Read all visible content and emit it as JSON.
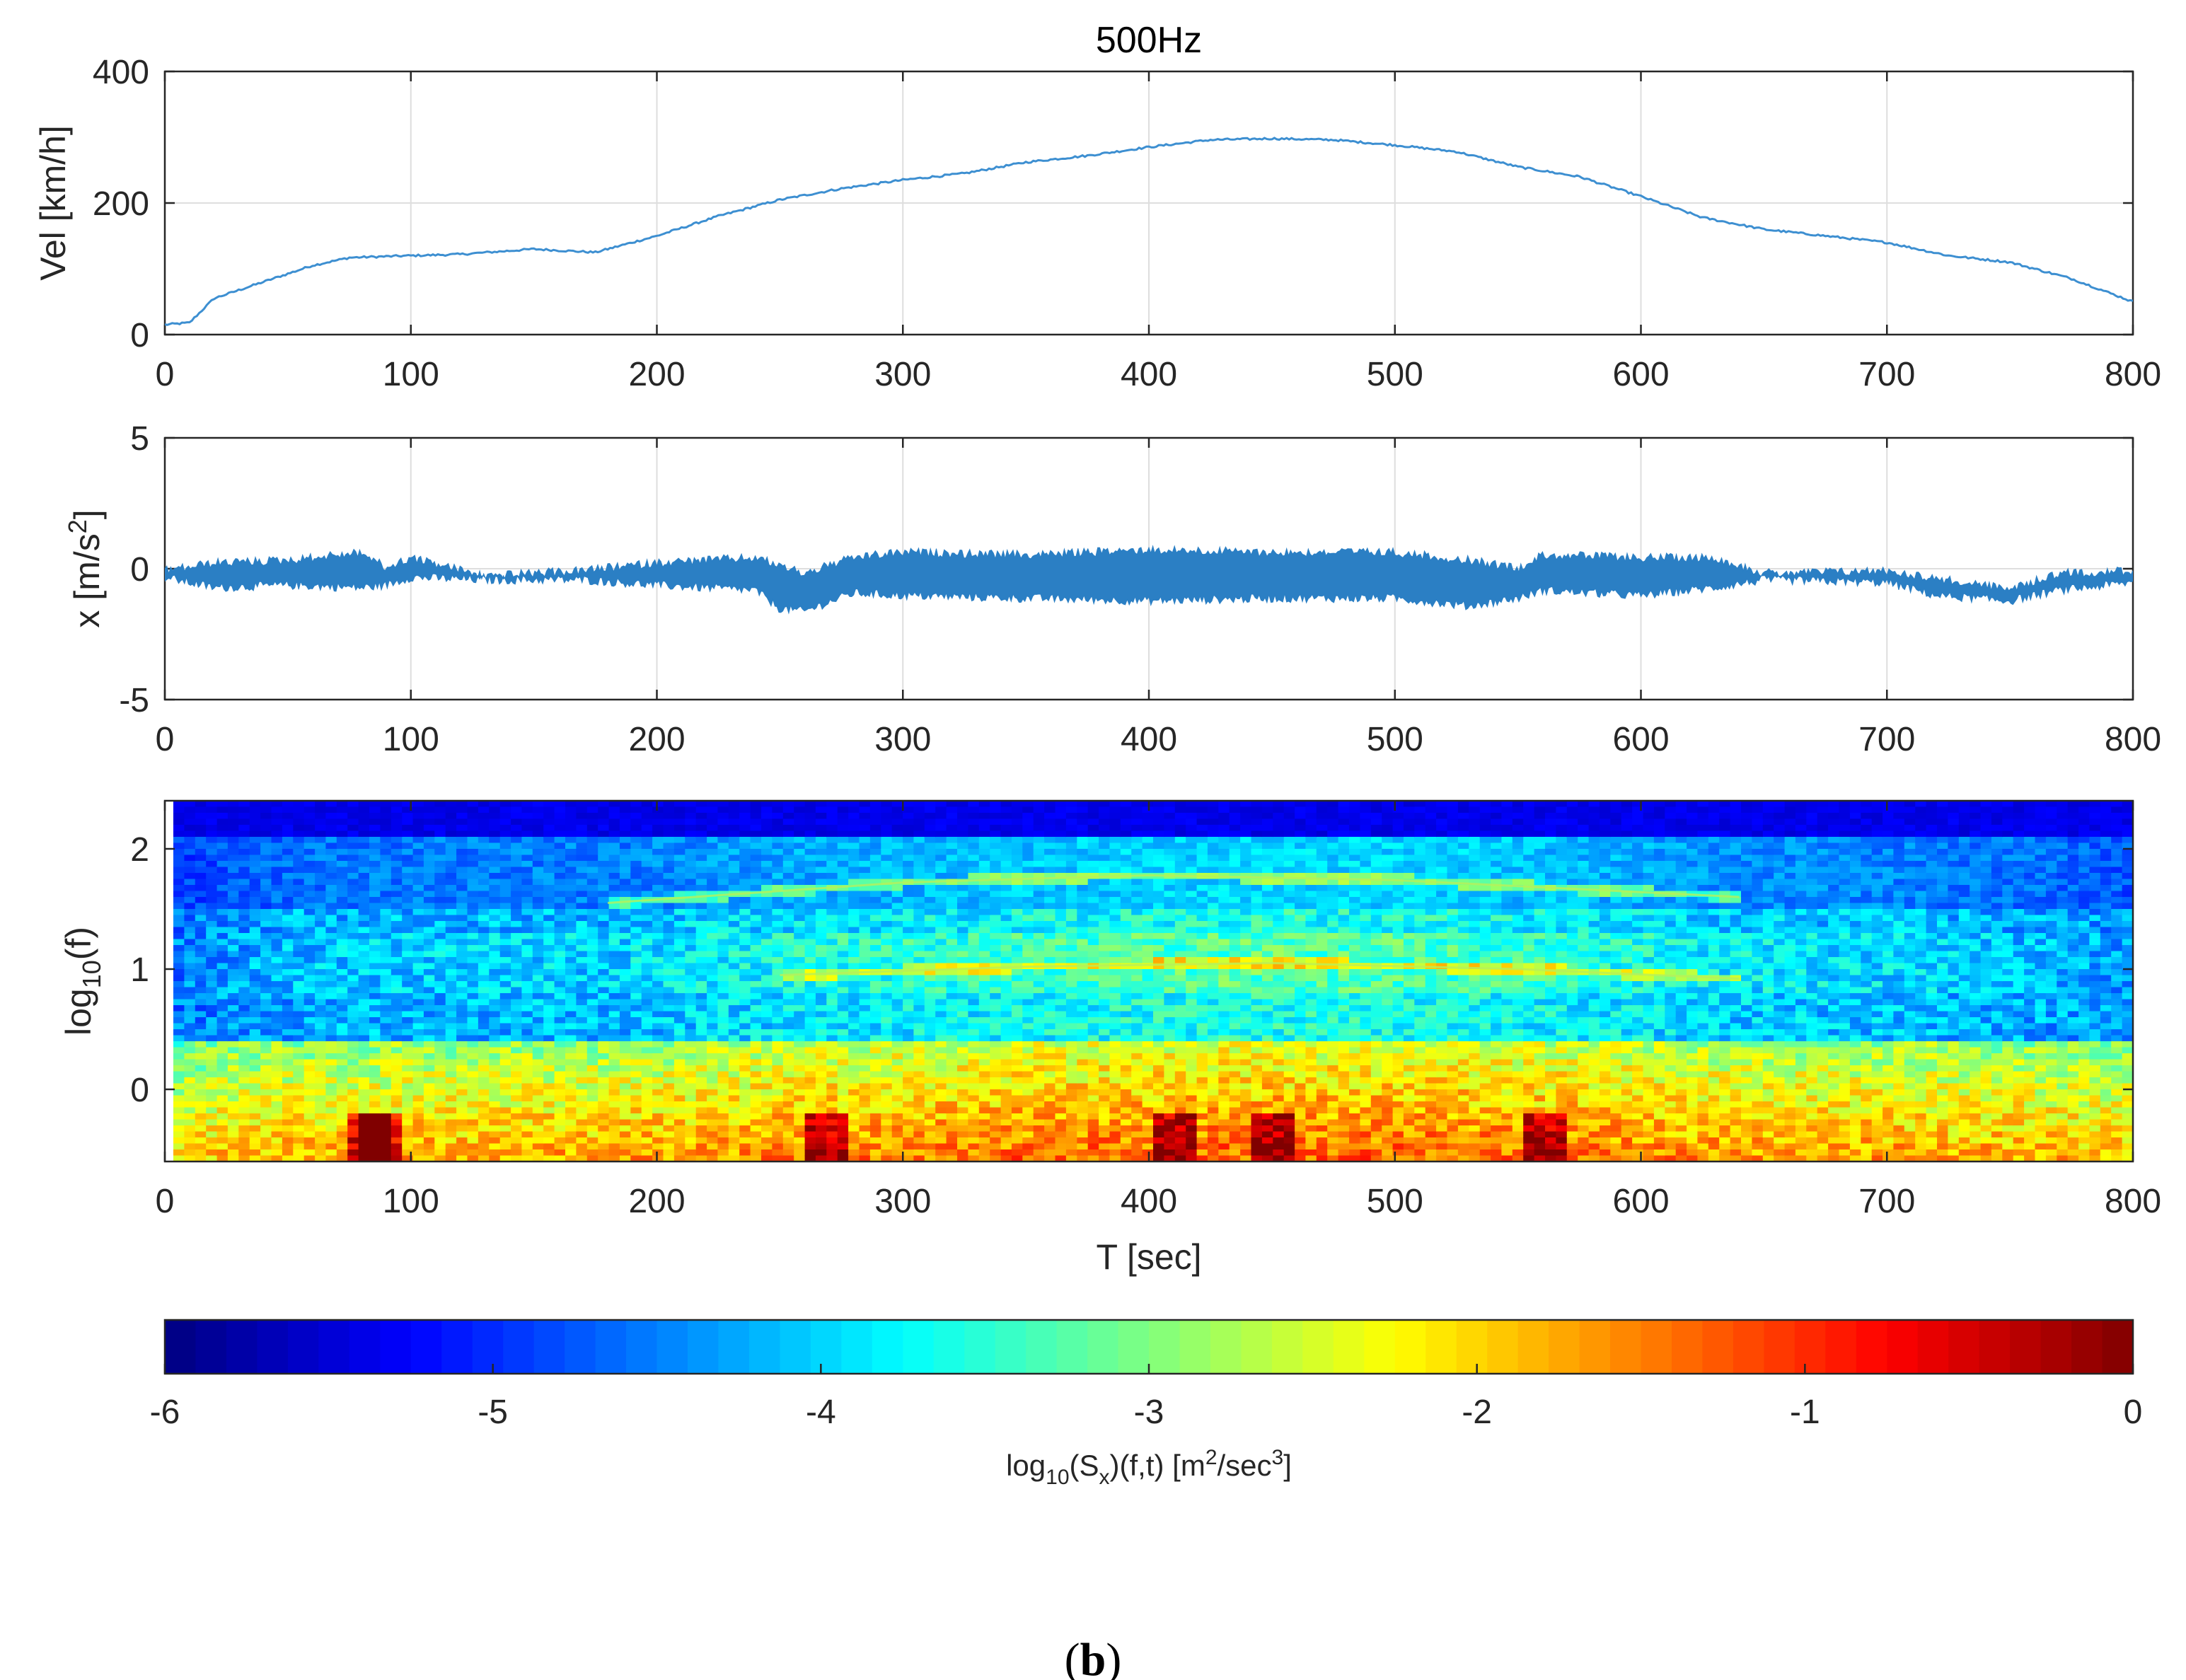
{
  "title": "500Hz",
  "caption": {
    "open": "(",
    "letter": "b",
    "close": ")"
  },
  "chart_data": [
    {
      "type": "line",
      "name": "velocity",
      "ylabel": "Vel [km/h]",
      "xlim": [
        0,
        800
      ],
      "ylim": [
        0,
        400
      ],
      "xticks": [
        0,
        100,
        200,
        300,
        400,
        500,
        600,
        700,
        800
      ],
      "yticks": [
        0,
        200,
        400
      ],
      "grid": true,
      "color": "#3d8fd1",
      "x": [
        0,
        10,
        20,
        40,
        60,
        75,
        100,
        120,
        150,
        175,
        200,
        225,
        250,
        275,
        300,
        325,
        350,
        375,
        400,
        425,
        450,
        475,
        500,
        525,
        550,
        575,
        600,
        625,
        650,
        675,
        700,
        725,
        750,
        775,
        800
      ],
      "y": [
        15,
        18,
        55,
        80,
        105,
        117,
        120,
        122,
        130,
        125,
        150,
        180,
        205,
        222,
        235,
        245,
        262,
        272,
        285,
        296,
        298,
        296,
        288,
        278,
        255,
        240,
        210,
        178,
        160,
        150,
        140,
        120,
        110,
        85,
        50
      ]
    },
    {
      "type": "line",
      "name": "acceleration",
      "ylabel_main": "x [m/s",
      "ylabel_sup": "2",
      "ylabel_end": "]",
      "xlim": [
        0,
        800
      ],
      "ylim": [
        -5,
        5
      ],
      "xticks": [
        0,
        100,
        200,
        300,
        400,
        500,
        600,
        700,
        800
      ],
      "yticks": [
        -5,
        0,
        5
      ],
      "grid": true,
      "color": "#2b7fc4",
      "envelope_x": [
        0,
        20,
        50,
        80,
        90,
        100,
        130,
        170,
        200,
        240,
        250,
        260,
        280,
        300,
        350,
        400,
        450,
        500,
        530,
        550,
        560,
        600,
        630,
        650,
        700,
        720,
        750,
        770,
        800
      ],
      "envelope_upper": [
        0.1,
        0.4,
        0.5,
        0.8,
        0.2,
        0.6,
        -0.1,
        0.1,
        0.4,
        0.6,
        0.3,
        0.0,
        0.6,
        0.8,
        0.7,
        0.9,
        0.8,
        0.8,
        0.5,
        0.2,
        0.7,
        0.6,
        0.6,
        0.0,
        0.1,
        -0.2,
        -0.6,
        0.0,
        0.1
      ],
      "envelope_lower": [
        -0.5,
        -0.9,
        -0.8,
        -0.9,
        -0.8,
        -0.5,
        -0.6,
        -0.6,
        -0.8,
        -1.0,
        -1.7,
        -1.8,
        -1.1,
        -1.2,
        -1.3,
        -1.4,
        -1.3,
        -1.3,
        -1.6,
        -1.3,
        -1.0,
        -1.2,
        -0.9,
        -0.6,
        -0.7,
        -1.2,
        -1.4,
        -1.0,
        -0.7
      ]
    },
    {
      "type": "heatmap",
      "name": "spectrogram",
      "xlabel": "T [sec]",
      "ylabel_main": "log",
      "ylabel_sub": "10",
      "ylabel_end": "(f)",
      "xlim": [
        0,
        800
      ],
      "ylim": [
        -0.6,
        2.4
      ],
      "xticks": [
        0,
        100,
        200,
        300,
        400,
        500,
        600,
        700,
        800
      ],
      "yticks": [
        0,
        1,
        2
      ],
      "colormap": "jet",
      "clim": [
        -6,
        0
      ],
      "ridges": [
        {
          "x": [
            180,
            300,
            400,
            500,
            640
          ],
          "y": [
            1.55,
            1.72,
            1.78,
            1.74,
            1.6
          ]
        },
        {
          "x": [
            250,
            350,
            450,
            550,
            640
          ],
          "y": [
            0.95,
            1.02,
            1.05,
            1.0,
            0.92
          ]
        }
      ],
      "hotspots_x": [
        80,
        85,
        265,
        410,
        450,
        560
      ]
    },
    {
      "type": "colorbar",
      "name": "colorbar",
      "clim": [
        -6,
        0
      ],
      "ticks": [
        -6,
        -5,
        -4,
        -3,
        -2,
        -1,
        0
      ],
      "label_main": "log",
      "label_sub1": "10",
      "label_mid": "(S",
      "label_sub2": "x",
      "label_mid2": ")(f,t) [m",
      "label_sup1": "2",
      "label_mid3": "/sec",
      "label_sup2": "3",
      "label_end": "]"
    }
  ]
}
